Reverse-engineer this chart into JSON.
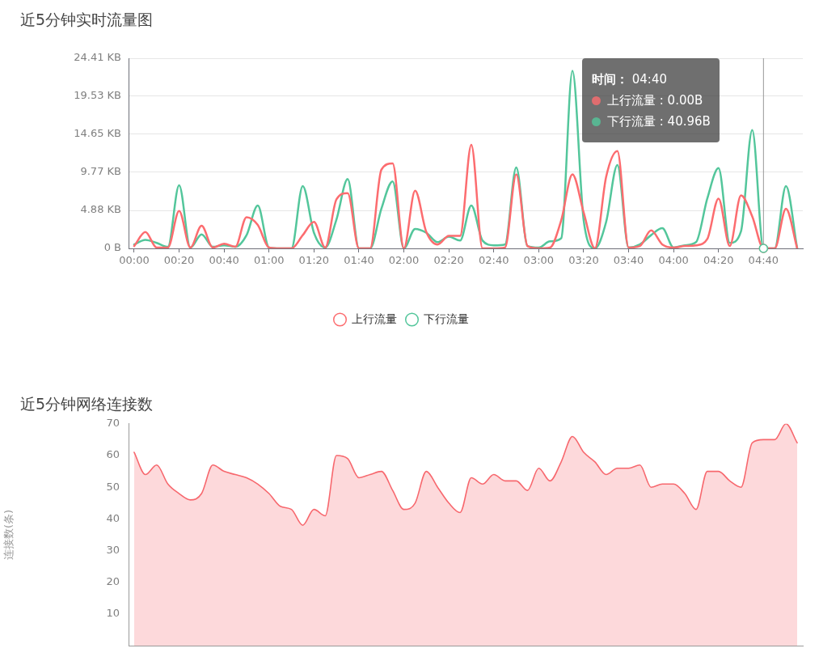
{
  "chart_data": [
    {
      "type": "line",
      "title": "近5分钟实时流量图",
      "categories": [
        "00:00",
        null,
        null,
        null,
        "00:20",
        null,
        null,
        null,
        "00:40",
        null,
        null,
        null,
        "01:00",
        null,
        null,
        null,
        "01:20",
        null,
        null,
        null,
        "01:40",
        null,
        null,
        null,
        "02:00",
        null,
        null,
        null,
        "02:20",
        null,
        null,
        null,
        "02:40",
        null,
        null,
        null,
        "03:00",
        null,
        null,
        null,
        "03:20",
        null,
        null,
        null,
        "03:40",
        null,
        null,
        null,
        "04:00",
        null,
        null,
        null,
        "04:20",
        null,
        null,
        null,
        "04:40",
        null,
        null,
        null
      ],
      "series": [
        {
          "name": "上行流量",
          "color": "#fc6c6f",
          "values": [
            0.3,
            2.1,
            0.1,
            0.1,
            4.8,
            0.1,
            2.9,
            0.1,
            0.6,
            0.2,
            4.0,
            3.0,
            0.1,
            0,
            0,
            1.7,
            3.4,
            0.1,
            6.3,
            7.1,
            0,
            0,
            10.1,
            10.9,
            0,
            7.4,
            2.1,
            0.5,
            1.6,
            1.6,
            13.3,
            0,
            0,
            0.1,
            9.5,
            0.3,
            0,
            0.1,
            3.6,
            9.5,
            4.6,
            0,
            9.2,
            12.5,
            0.1,
            0.3,
            2.3,
            0.5,
            0.1,
            0.3,
            0.4,
            1.2,
            6.4,
            0.3,
            6.8,
            4.1,
            0,
            0,
            5.1,
            0
          ]
        },
        {
          "name": "下行流量",
          "color": "#53c69b",
          "values": [
            0.5,
            1.1,
            0.7,
            0.2,
            8.1,
            0.1,
            1.8,
            0.2,
            0.4,
            0.2,
            1.7,
            5.5,
            0.1,
            0,
            0,
            8.0,
            2.0,
            0.1,
            3.7,
            8.9,
            0,
            0,
            5.1,
            8.6,
            0,
            2.5,
            2.0,
            0.8,
            1.5,
            1.0,
            5.5,
            1.0,
            0.4,
            0.5,
            10.4,
            0.3,
            0.1,
            0.9,
            1.3,
            22.8,
            3.6,
            0,
            3.4,
            10.7,
            0.1,
            0.5,
            1.7,
            2.6,
            0.1,
            0.4,
            0.8,
            6.4,
            10.3,
            0.7,
            2.2,
            15.2,
            0,
            0,
            8.0,
            0
          ]
        }
      ],
      "ylim": [
        0,
        24.41
      ],
      "yticks": [
        {
          "value": 0,
          "label": "0 B"
        },
        {
          "value": 4.88,
          "label": "4.88 KB"
        },
        {
          "value": 9.77,
          "label": "9.77 KB"
        },
        {
          "value": 14.65,
          "label": "14.65 KB"
        },
        {
          "value": 19.53,
          "label": "19.53 KB"
        },
        {
          "value": 24.41,
          "label": "24.41 KB"
        }
      ],
      "grid": "y",
      "legend": "bottom",
      "ref_lines": [
        {
          "axis": "x",
          "value": "04:40",
          "color": "#999999"
        }
      ],
      "annotations": [
        "时间： 04:40",
        "上行流量 : 0.00B",
        "下行流量 : 40.96B"
      ]
    },
    {
      "type": "area",
      "title": "近5分钟网络连接数",
      "ylabel": "连接数(条)",
      "categories": [
        null,
        null,
        null,
        null,
        null,
        null,
        null,
        null,
        null,
        null,
        null,
        null,
        null,
        null,
        null,
        null,
        null,
        null,
        null,
        null,
        null,
        null,
        null,
        null,
        null,
        null,
        null,
        null,
        null,
        null,
        null,
        null,
        null,
        null,
        null,
        null,
        null,
        null,
        null,
        null,
        null,
        null,
        null,
        null,
        null,
        null,
        null,
        null,
        null,
        null,
        null,
        null,
        null,
        null,
        null,
        null,
        null,
        null,
        null,
        null
      ],
      "series": [
        {
          "color": "#f7686e",
          "values": [
            61,
            54,
            57,
            51,
            48,
            46,
            48,
            57,
            55,
            54,
            53,
            51,
            48,
            44,
            43,
            38,
            43,
            41,
            60,
            59,
            53,
            54,
            55,
            49,
            43,
            45,
            55,
            50,
            45,
            42,
            53,
            51,
            54,
            52,
            52,
            49,
            56,
            52,
            58,
            66,
            61,
            58,
            54,
            56,
            56,
            57,
            50,
            51,
            51,
            48,
            43,
            55,
            55,
            52,
            50,
            64,
            65,
            65,
            70,
            64
          ]
        }
      ],
      "ylim": [
        0,
        70
      ],
      "yticks": [
        10,
        20,
        30,
        40,
        50,
        60,
        70
      ],
      "tick_labels": "y"
    }
  ]
}
